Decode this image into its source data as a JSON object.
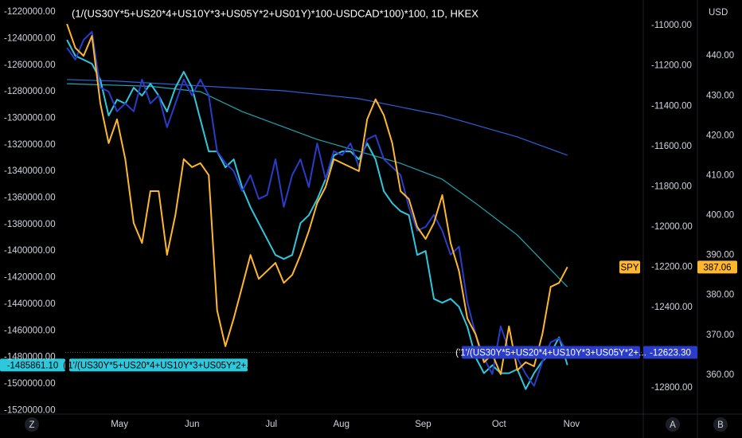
{
  "chart_data": {
    "type": "line",
    "title": "(1/(US30Y*5+US20*4+US10Y*3+US05Y*2+US01Y)*100-USDCAD*100)*100, 1D, HKEX",
    "currency": "USD",
    "corner_buttons": [
      "Z",
      "A",
      "B"
    ],
    "xlim": [
      -0.2,
      69.1
    ],
    "xticks": [
      {
        "value": 6.3,
        "label": "May"
      },
      {
        "value": 15,
        "label": "Jun"
      },
      {
        "value": 24.5,
        "label": "Jul"
      },
      {
        "value": 32.9,
        "label": "Aug"
      },
      {
        "value": 42.7,
        "label": "Sep"
      },
      {
        "value": 51.8,
        "label": "Oct"
      },
      {
        "value": 60.5,
        "label": "Nov"
      }
    ],
    "ylim": [
      -1522800,
      -1211000
    ],
    "yticks": [
      {
        "value": -1220000,
        "label": "-1220000.00"
      },
      {
        "value": -1240000,
        "label": "-1240000.00"
      },
      {
        "value": -1260000,
        "label": "-1260000.00"
      },
      {
        "value": -1280000,
        "label": "-1280000.00"
      },
      {
        "value": -1300000,
        "label": "-1300000.00"
      },
      {
        "value": -1320000,
        "label": "-1320000.00"
      },
      {
        "value": -1340000,
        "label": "-1340000.00"
      },
      {
        "value": -1360000,
        "label": "-1360000.00"
      },
      {
        "value": -1380000,
        "label": "-1380000.00"
      },
      {
        "value": -1400000,
        "label": "-1400000.00"
      },
      {
        "value": -1420000,
        "label": "-1420000.00"
      },
      {
        "value": -1440000,
        "label": "-1440000.00"
      },
      {
        "value": -1460000,
        "label": "-1460000.00"
      },
      {
        "value": -1480000,
        "label": "-1480000.00"
      },
      {
        "value": -1500000,
        "label": "-1500000.00"
      },
      {
        "value": -1520000,
        "label": "-1520000.00"
      }
    ],
    "y2lim": [
      -12930,
      -10873
    ],
    "y2ticks": [
      {
        "value": -11000,
        "label": "-11000.00"
      },
      {
        "value": -11200,
        "label": "-11200.00"
      },
      {
        "value": -11400,
        "label": "-11400.00"
      },
      {
        "value": -11600,
        "label": "-11600.00"
      },
      {
        "value": -11800,
        "label": "-11800.00"
      },
      {
        "value": -12000,
        "label": "-12000.00"
      },
      {
        "value": -12200,
        "label": "-12200.00"
      },
      {
        "value": -12400,
        "label": "-12400.00"
      },
      {
        "value": -12800,
        "label": "-12800.00"
      }
    ],
    "y3lim": [
      350.2,
      454
    ],
    "y3ticks": [
      {
        "value": 440,
        "label": "440.00"
      },
      {
        "value": 430,
        "label": "430.00"
      },
      {
        "value": 420,
        "label": "420.00"
      },
      {
        "value": 410,
        "label": "410.00"
      },
      {
        "value": 400,
        "label": "400.00"
      },
      {
        "value": 390,
        "label": "390.00"
      },
      {
        "value": 380,
        "label": "380.00"
      },
      {
        "value": 370,
        "label": "370.00"
      },
      {
        "value": 360,
        "label": "360.00"
      }
    ],
    "series": [
      {
        "axis": "y",
        "color": "#1fa6b0",
        "width": 1.2,
        "x": [
          0,
          10,
          16,
          21,
          30,
          40,
          45,
          49,
          54,
          60
        ],
        "values": [
          -1274000,
          -1276000,
          -1280000,
          -1295000,
          -1316000,
          -1334000,
          -1346000,
          -1364000,
          -1388000,
          -1427000
        ]
      },
      {
        "axis": "y2",
        "color": "#2f5fd8",
        "width": 1.2,
        "x": [
          0,
          6,
          16,
          26,
          35,
          45,
          54,
          60
        ],
        "values": [
          -11268,
          -11276,
          -11300,
          -11324,
          -11363,
          -11446,
          -11553,
          -11644
        ]
      },
      {
        "axis": "y",
        "color": "#2ec8dc",
        "width": 2,
        "name": "('1'/(US30Y*5+US20*4+US10Y*3+US05Y*2+...",
        "last_label": "-1485861.10",
        "values": [
          -1241000,
          -1253000,
          -1256000,
          -1259000,
          -1271000,
          -1298000,
          -1286000,
          -1289000,
          -1277000,
          -1283000,
          -1274000,
          -1283000,
          -1295000,
          -1277000,
          -1265000,
          -1277000,
          -1301000,
          -1325000,
          -1325000,
          -1337000,
          -1331000,
          -1352000,
          -1367000,
          -1379000,
          -1391000,
          -1403000,
          -1406000,
          -1403000,
          -1379000,
          -1373000,
          -1361000,
          -1346000,
          -1328000,
          -1325000,
          -1325000,
          -1331000,
          -1319000,
          -1331000,
          -1355000,
          -1364000,
          -1370000,
          -1373000,
          -1403000,
          -1400000,
          -1436000,
          -1439000,
          -1436000,
          -1442000,
          -1457000,
          -1480000,
          -1492000,
          -1486000,
          -1492000,
          -1492000,
          -1489000,
          -1504000,
          -1492000,
          -1483000,
          -1477000,
          -1465000,
          -1485861.1
        ]
      },
      {
        "axis": "y2",
        "color": "#2a3cc8",
        "width": 2,
        "name": "('1'/(US30Y*5+US20*4+US10Y*3+US05Y*2+...",
        "last_label": "-12623.30",
        "values": [
          -11110,
          -11169,
          -11071,
          -11031,
          -11308,
          -11328,
          -11426,
          -11387,
          -11426,
          -11268,
          -11387,
          -11347,
          -11505,
          -11387,
          -11268,
          -11347,
          -11268,
          -11347,
          -11624,
          -11683,
          -11723,
          -11822,
          -11743,
          -11861,
          -11841,
          -11664,
          -11901,
          -11743,
          -11664,
          -11802,
          -11585,
          -11762,
          -11624,
          -11644,
          -11585,
          -11703,
          -11565,
          -11545,
          -11664,
          -11703,
          -11743,
          -11901,
          -12019,
          -12000,
          -11940,
          -12019,
          -12138,
          -12098,
          -12375,
          -12533,
          -12652,
          -12731,
          -12494,
          -12612,
          -12652,
          -12731,
          -12790,
          -12672,
          -12573,
          -12553,
          -12623.3
        ]
      },
      {
        "axis": "y3",
        "color": "#ffb82e",
        "width": 2,
        "name": "SPY",
        "last_label": "387.06",
        "values": [
          448,
          442,
          440,
          445,
          428.1,
          418.1,
          424.1,
          414.1,
          398.1,
          393.1,
          406.1,
          406.1,
          390.1,
          400.1,
          414.1,
          412.1,
          413.1,
          410.1,
          376.2,
          367.2,
          374.2,
          382.1,
          390.1,
          384.1,
          386.1,
          388.1,
          383.1,
          385.1,
          390.1,
          396.1,
          403.1,
          407.1,
          414.1,
          413.1,
          412.1,
          411.1,
          424.1,
          429.1,
          425.1,
          418.1,
          406.1,
          404.1,
          397.1,
          394.1,
          398.1,
          405.1,
          393.1,
          386.1,
          374.2,
          370.2,
          363.2,
          365.2,
          360.2,
          372.2,
          361.2,
          363.2,
          362.2,
          370.2,
          382.1,
          383.1,
          387.06
        ]
      }
    ]
  }
}
